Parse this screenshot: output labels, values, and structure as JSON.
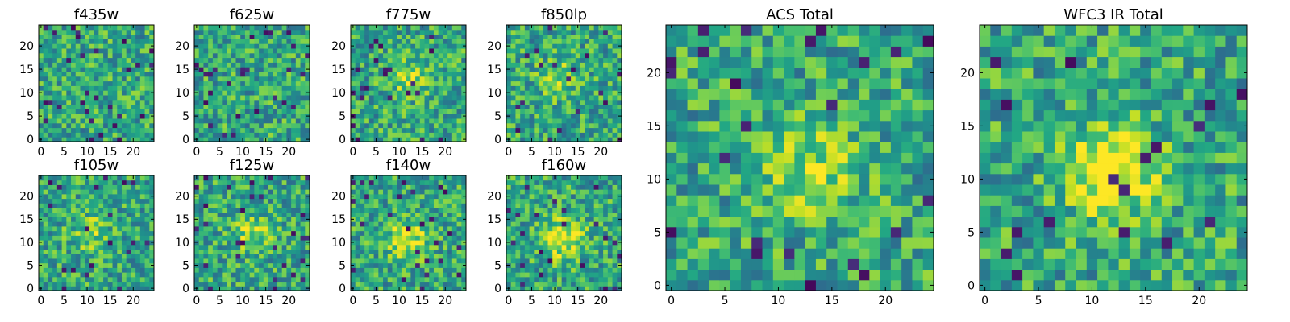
{
  "chart_data": [
    {
      "type": "heatmap",
      "title": "f435w",
      "rows": 25,
      "cols": 25,
      "x_ticks": [
        "0",
        "5",
        "10",
        "15",
        "20"
      ],
      "y_ticks": [
        "0",
        "5",
        "10",
        "15",
        "20"
      ],
      "seed": 11,
      "blob": [
        0.45,
        0.55,
        0.0
      ],
      "colormap": "viridis"
    },
    {
      "type": "heatmap",
      "title": "f625w",
      "rows": 25,
      "cols": 25,
      "x_ticks": [
        "0",
        "5",
        "10",
        "15",
        "20"
      ],
      "y_ticks": [
        "0",
        "5",
        "10",
        "15",
        "20"
      ],
      "seed": 23,
      "blob": [
        0.4,
        0.6,
        0.0
      ],
      "colormap": "viridis"
    },
    {
      "type": "heatmap",
      "title": "f775w",
      "rows": 25,
      "cols": 25,
      "x_ticks": [
        "0",
        "5",
        "10",
        "15",
        "20"
      ],
      "y_ticks": [
        "0",
        "5",
        "10",
        "15",
        "20"
      ],
      "seed": 37,
      "blob": [
        0.5,
        0.55,
        0.25
      ],
      "colormap": "viridis"
    },
    {
      "type": "heatmap",
      "title": "f850lp",
      "rows": 25,
      "cols": 25,
      "x_ticks": [
        "0",
        "5",
        "10",
        "15",
        "20"
      ],
      "y_ticks": [
        "0",
        "5",
        "10",
        "15",
        "20"
      ],
      "seed": 41,
      "blob": [
        0.45,
        0.55,
        0.2
      ],
      "colormap": "viridis"
    },
    {
      "type": "heatmap",
      "title": "f105w",
      "rows": 25,
      "cols": 25,
      "x_ticks": [
        "0",
        "5",
        "10",
        "15",
        "20"
      ],
      "y_ticks": [
        "0",
        "5",
        "10",
        "15",
        "20"
      ],
      "seed": 53,
      "blob": [
        0.45,
        0.5,
        0.2
      ],
      "colormap": "viridis"
    },
    {
      "type": "heatmap",
      "title": "f125w",
      "rows": 25,
      "cols": 25,
      "x_ticks": [
        "0",
        "5",
        "10",
        "15",
        "20"
      ],
      "y_ticks": [
        "0",
        "5",
        "10",
        "15",
        "20"
      ],
      "seed": 67,
      "blob": [
        0.5,
        0.5,
        0.25
      ],
      "colormap": "viridis"
    },
    {
      "type": "heatmap",
      "title": "f140w",
      "rows": 25,
      "cols": 25,
      "x_ticks": [
        "0",
        "5",
        "10",
        "15",
        "20"
      ],
      "y_ticks": [
        "0",
        "5",
        "10",
        "15",
        "20"
      ],
      "seed": 71,
      "blob": [
        0.5,
        0.45,
        0.35
      ],
      "colormap": "viridis"
    },
    {
      "type": "heatmap",
      "title": "f160w",
      "rows": 25,
      "cols": 25,
      "x_ticks": [
        "0",
        "5",
        "10",
        "15",
        "20"
      ],
      "y_ticks": [
        "0",
        "5",
        "10",
        "15",
        "20"
      ],
      "seed": 83,
      "blob": [
        0.5,
        0.45,
        0.4
      ],
      "colormap": "viridis"
    },
    {
      "type": "heatmap",
      "title": "ACS Total",
      "rows": 25,
      "cols": 25,
      "x_ticks": [
        "0",
        "5",
        "10",
        "15",
        "20"
      ],
      "y_ticks": [
        "0",
        "5",
        "10",
        "15",
        "20"
      ],
      "seed": 97,
      "blob": [
        0.55,
        0.45,
        0.3
      ],
      "colormap": "viridis"
    },
    {
      "type": "heatmap",
      "title": "WFC3 IR Total",
      "rows": 25,
      "cols": 25,
      "x_ticks": [
        "0",
        "5",
        "10",
        "15",
        "20"
      ],
      "y_ticks": [
        "0",
        "5",
        "10",
        "15",
        "20"
      ],
      "seed": 109,
      "blob": [
        0.5,
        0.45,
        0.45
      ],
      "colormap": "viridis"
    }
  ]
}
